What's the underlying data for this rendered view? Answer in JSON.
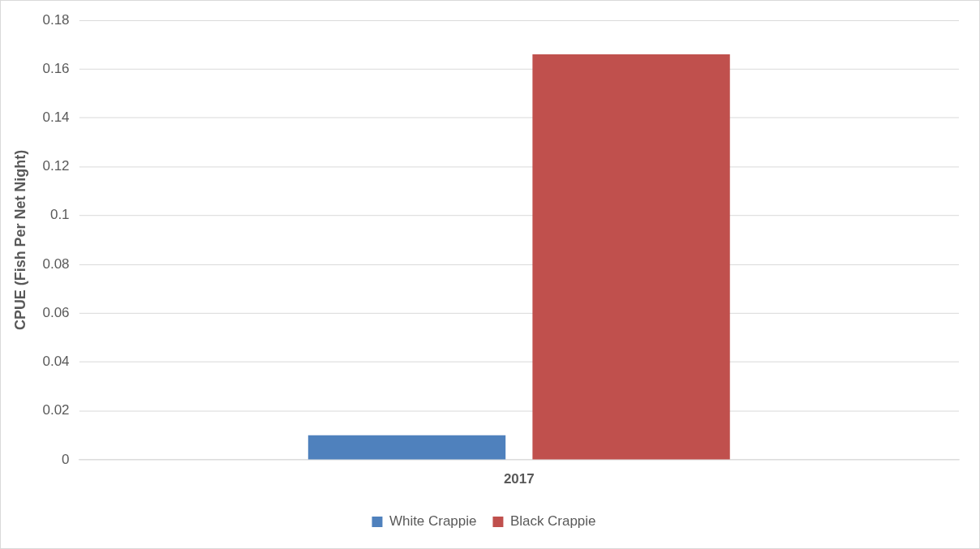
{
  "chart_data": {
    "type": "bar",
    "ylabel": "CPUE (Fish Per Net Night)",
    "categories": [
      "2017"
    ],
    "series": [
      {
        "name": "White Crappie",
        "color": "#4f81bd",
        "values": [
          0.01
        ]
      },
      {
        "name": "Black Crappie",
        "color": "#c0504d",
        "values": [
          0.166
        ]
      }
    ],
    "ylim": [
      0,
      0.18
    ],
    "yticks": [
      0,
      0.02,
      0.04,
      0.06,
      0.08,
      0.1,
      0.12,
      0.14,
      0.16,
      0.18
    ],
    "grid": "y",
    "legend": "bottom"
  }
}
